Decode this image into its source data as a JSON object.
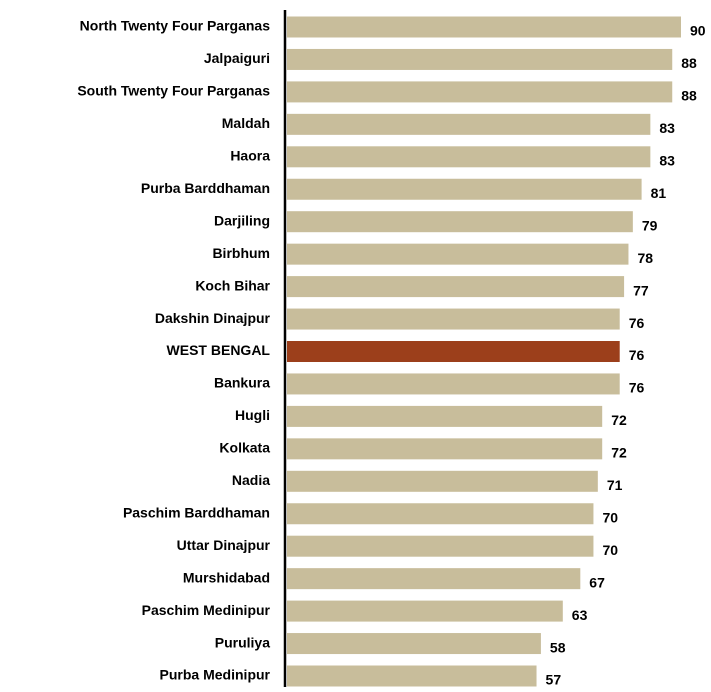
{
  "chart_data": {
    "type": "bar",
    "orientation": "horizontal",
    "categories": [
      "North Twenty Four Parganas",
      "Jalpaiguri",
      "South Twenty Four Parganas",
      "Maldah",
      "Haora",
      "Purba Barddhaman",
      "Darjiling",
      "Birbhum",
      "Koch Bihar",
      "Dakshin Dinajpur",
      "WEST BENGAL",
      "Bankura",
      "Hugli",
      "Kolkata",
      "Nadia",
      "Paschim Barddhaman",
      "Uttar Dinajpur",
      "Murshidabad",
      "Paschim Medinipur",
      "Puruliya",
      "Purba Medinipur"
    ],
    "values": [
      90,
      88,
      88,
      83,
      83,
      81,
      79,
      78,
      77,
      76,
      76,
      76,
      72,
      72,
      71,
      70,
      70,
      67,
      63,
      58,
      57
    ],
    "colors": [
      "#c8bd9b",
      "#c8bd9b",
      "#c8bd9b",
      "#c8bd9b",
      "#c8bd9b",
      "#c8bd9b",
      "#c8bd9b",
      "#c8bd9b",
      "#c8bd9b",
      "#c8bd9b",
      "#9c3f1b",
      "#c8bd9b",
      "#c8bd9b",
      "#c8bd9b",
      "#c8bd9b",
      "#c8bd9b",
      "#c8bd9b",
      "#c8bd9b",
      "#c8bd9b",
      "#c8bd9b",
      "#c8bd9b"
    ]
  }
}
